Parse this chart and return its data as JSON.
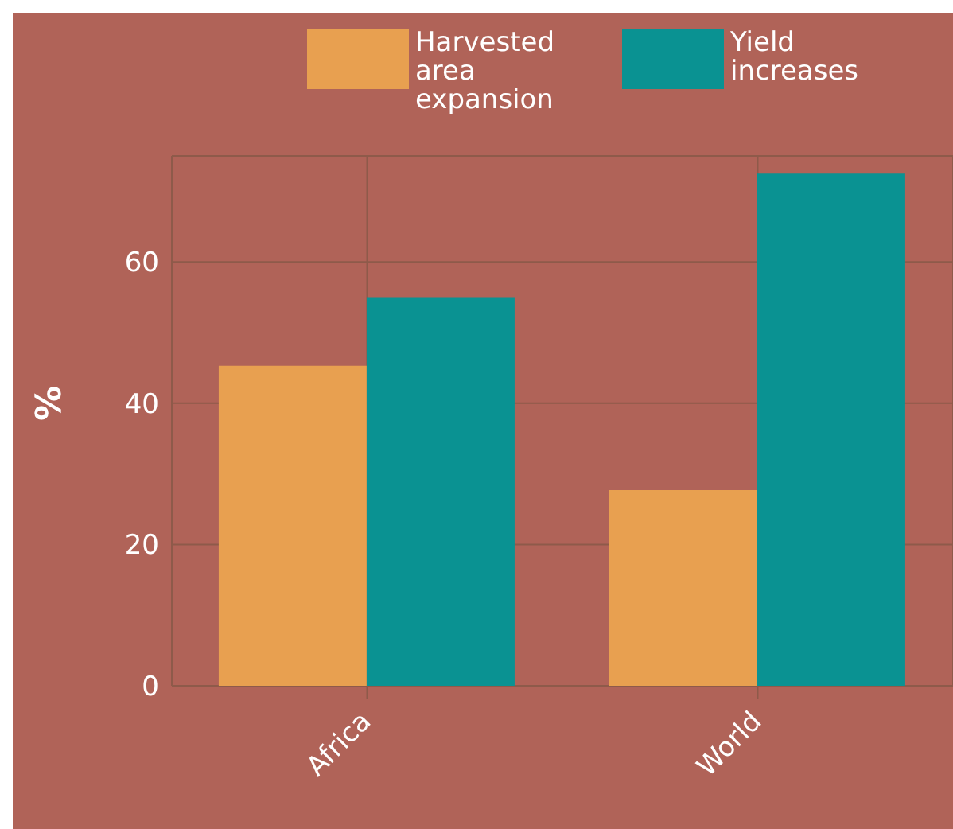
{
  "chart_data": {
    "type": "bar",
    "ylabel": "%",
    "categories": [
      "Africa",
      "World"
    ],
    "series": [
      {
        "name": "Harvested area expansion",
        "color": "#e8a050",
        "values": [
          45.3,
          27.7
        ]
      },
      {
        "name": "Yield increases",
        "color": "#0a9292",
        "values": [
          55,
          72.5
        ]
      }
    ],
    "ylim": [
      0,
      75
    ],
    "yticks": [
      0,
      20,
      40,
      60
    ],
    "grid": true,
    "legend": "top right"
  }
}
